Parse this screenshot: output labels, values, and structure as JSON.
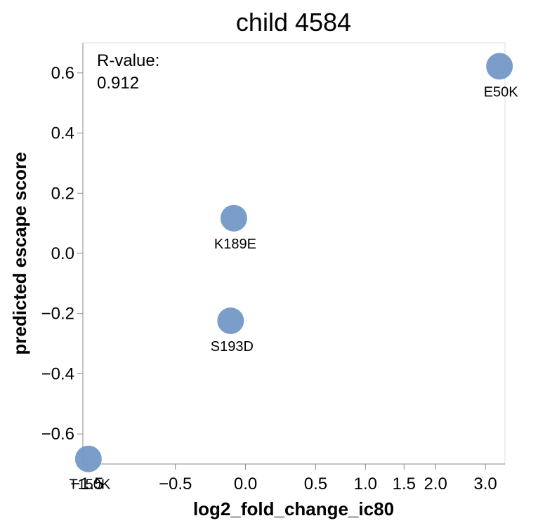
{
  "chart_data": {
    "type": "scatter",
    "title": "child 4584",
    "xlabel": "log2_fold_change_ic80",
    "ylabel": "predicted escape score",
    "annotation": {
      "label": "R-value:",
      "value": "0.912"
    },
    "points": [
      {
        "label": "T150K",
        "x": -1.48,
        "y": -0.683
      },
      {
        "label": "K189E",
        "x": -0.07,
        "y": 0.117
      },
      {
        "label": "S193D",
        "x": -0.09,
        "y": -0.224
      },
      {
        "label": "E50K",
        "x": 3.34,
        "y": 0.622
      }
    ],
    "x_ticks": [
      {
        "value": -1.5,
        "label": "−1.5"
      },
      {
        "value": -0.5,
        "label": "−0.5"
      },
      {
        "value": 0.0,
        "label": "0.0"
      },
      {
        "value": 0.5,
        "label": "0.5"
      },
      {
        "value": 1.0,
        "label": "1.0"
      },
      {
        "value": 1.5,
        "label": "1.5"
      },
      {
        "value": 2.0,
        "label": "2.0"
      },
      {
        "value": 3.0,
        "label": "3.0"
      }
    ],
    "y_ticks": [
      {
        "value": 0.6,
        "label": "0.6"
      },
      {
        "value": 0.4,
        "label": "0.4"
      },
      {
        "value": 0.2,
        "label": "0.2"
      },
      {
        "value": 0.0,
        "label": "0.0"
      },
      {
        "value": -0.2,
        "label": "−0.2"
      },
      {
        "value": -0.4,
        "label": "−0.4"
      },
      {
        "value": -0.6,
        "label": "−0.6"
      }
    ],
    "x_scale": "symlog",
    "xlim": [
      -1.56,
      3.48
    ],
    "ylim": [
      -0.7,
      0.7
    ],
    "grid": false,
    "point_color": "#7399c6"
  }
}
